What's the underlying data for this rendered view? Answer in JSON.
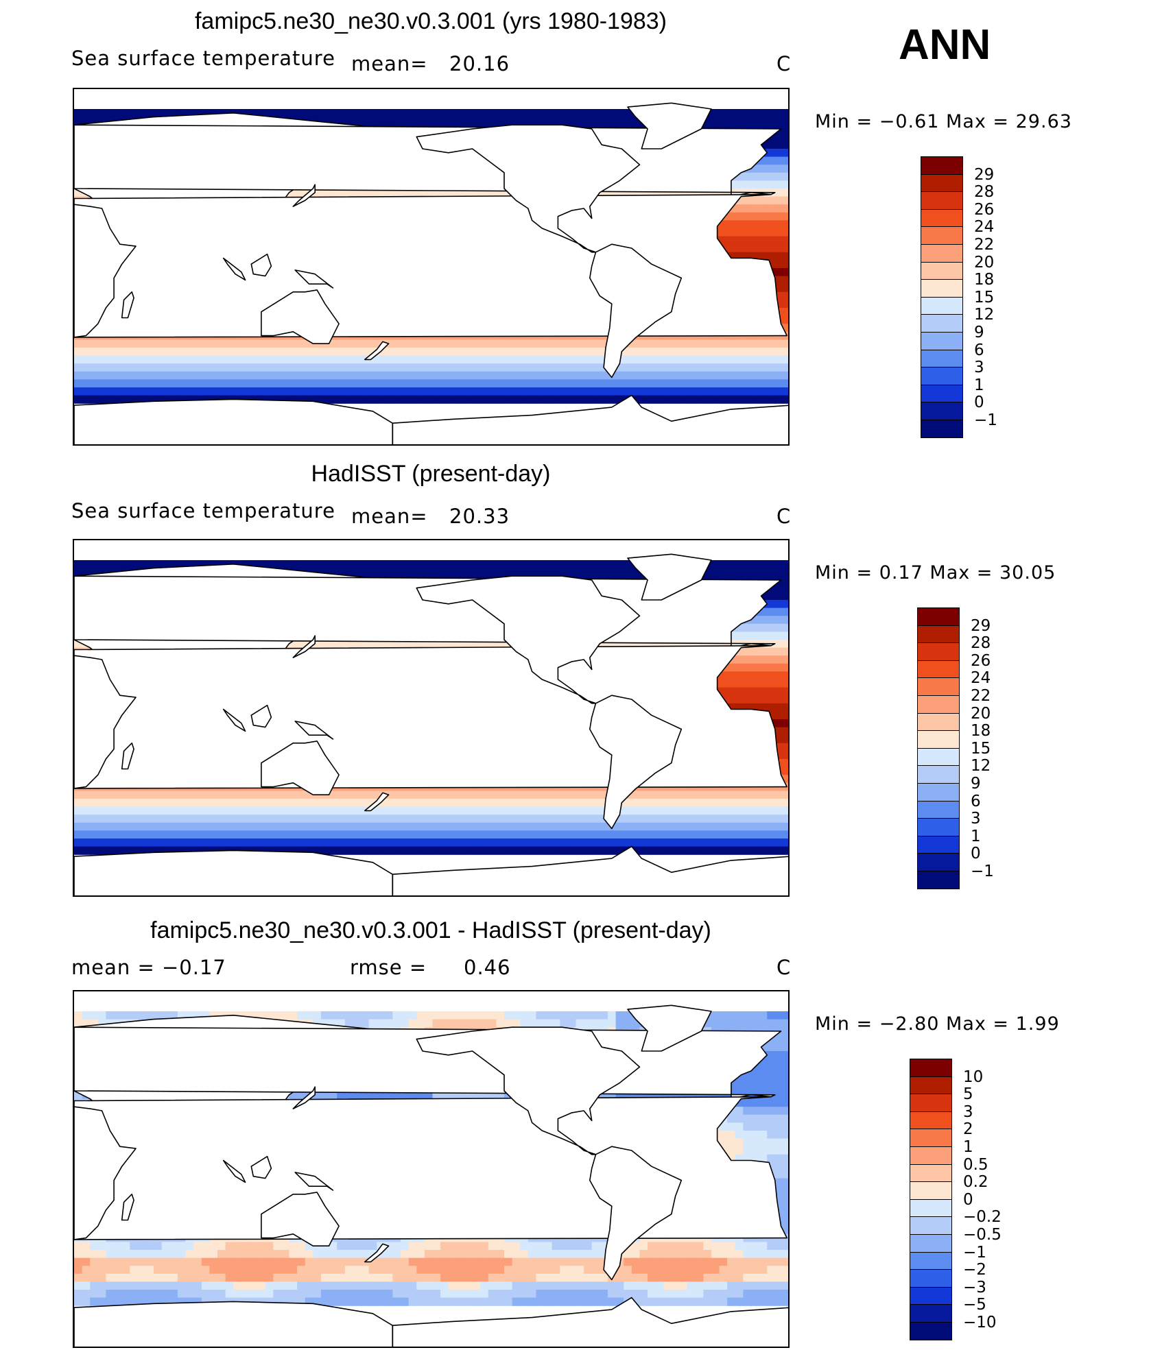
{
  "season": "ANN",
  "panels": [
    {
      "title": "famipc5.ne30_ne30.v0.3.001 (yrs 1980-1983)",
      "left_label": "Sea surface temperature",
      "mean_label": "mean=",
      "mean_value": "20.16",
      "units": "C",
      "minmax_text": "Min =   −0.61  Max =    29.63",
      "colorbar": {
        "labels": [
          "29",
          "28",
          "26",
          "24",
          "22",
          "20",
          "18",
          "15",
          "12",
          "9",
          "6",
          "3",
          "1",
          "0",
          "−1"
        ],
        "colors": [
          "#7d0000",
          "#b01e00",
          "#d83410",
          "#f0501e",
          "#f87848",
          "#fca07a",
          "#fdc6a6",
          "#fde6d2",
          "#d6e8fb",
          "#b4cdf8",
          "#8cb0f5",
          "#5c8cf0",
          "#2f60ea",
          "#1438d8",
          "#06189c",
          "#000a78"
        ]
      }
    },
    {
      "title": "HadISST (present-day)",
      "left_label": "Sea surface temperature",
      "mean_label": "mean=",
      "mean_value": "20.33",
      "units": "C",
      "minmax_text": "Min =    0.17  Max =    30.05",
      "colorbar": {
        "labels": [
          "29",
          "28",
          "26",
          "24",
          "22",
          "20",
          "18",
          "15",
          "12",
          "9",
          "6",
          "3",
          "1",
          "0",
          "−1"
        ],
        "colors": [
          "#7d0000",
          "#b01e00",
          "#d83410",
          "#f0501e",
          "#f87848",
          "#fca07a",
          "#fdc6a6",
          "#fde6d2",
          "#d6e8fb",
          "#b4cdf8",
          "#8cb0f5",
          "#5c8cf0",
          "#2f60ea",
          "#1438d8",
          "#06189c",
          "#000a78"
        ]
      }
    },
    {
      "title": "famipc5.ne30_ne30.v0.3.001 - HadISST (present-day)",
      "left_label": "mean =    −0.17",
      "mean_label": "rmse =",
      "mean_value": "0.46",
      "units": "C",
      "minmax_text": "Min =   −2.80  Max =     1.99",
      "colorbar": {
        "labels": [
          "10",
          "5",
          "3",
          "2",
          "1",
          "0.5",
          "0.2",
          "0",
          "−0.2",
          "−0.5",
          "−1",
          "−2",
          "−3",
          "−5",
          "−10"
        ],
        "colors": [
          "#7d0000",
          "#b01e00",
          "#d83410",
          "#f0501e",
          "#f87848",
          "#fca07a",
          "#fdc6a6",
          "#fde6d2",
          "#d6e8fb",
          "#b4cdf8",
          "#8cb0f5",
          "#5c8cf0",
          "#2f60ea",
          "#1438d8",
          "#06189c",
          "#000a78"
        ]
      }
    }
  ]
}
